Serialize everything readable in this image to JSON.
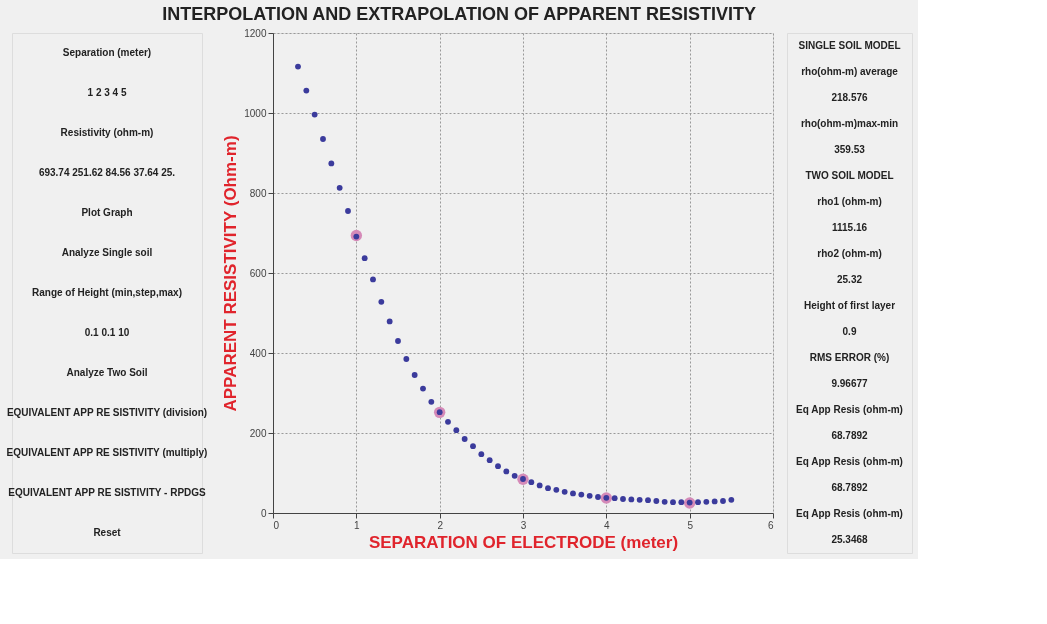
{
  "chart_data": [
    {
      "type": "other",
      "annotations": [
        "Separation (meter)",
        "1 2 3 4 5",
        "Resistivity (ohm-m)",
        "693.74 251.62 84.56 37.64 25.",
        "Plot Graph",
        "Analyze Single soil",
        "Range of Height (min,step,max)",
        "0.1 0.1 10",
        "Analyze Two Soil",
        "EQUIVALENT APP RE SISTIVITY (division)",
        "EQUIVALENT APP RE SISTIVITY (multiply)",
        "EQUIVALENT APP RE SISTIVITY - RPDGS",
        "Reset"
      ]
    },
    {
      "type": "scatter",
      "title": "INTERPOLATION AND EXTRAPOLATION OF APPARENT RESISTIVITY",
      "xlabel": "SEPARATION OF ELECTRODE (meter)",
      "ylabel": "APPARENT RESISTIVITY (Ohm-m)",
      "xlim": [
        0,
        6
      ],
      "xticks": [
        0,
        1,
        2,
        3,
        4,
        5,
        6
      ],
      "ylim": [
        0,
        1200
      ],
      "yticks": [
        0,
        200,
        400,
        600,
        800,
        1000,
        1200
      ],
      "grid": true,
      "marker": "circle",
      "series": [
        {
          "color": "#d58ab8",
          "x": [
            1,
            2,
            3,
            4,
            5
          ],
          "values": [
            693.74,
            251.62,
            84.56,
            37.64,
            25
          ]
        },
        {
          "color": "#3b3b9c",
          "x": [
            0.3,
            0.4,
            0.5,
            0.6,
            0.7,
            0.8,
            0.9,
            1.0,
            1.1,
            1.2,
            1.3,
            1.4,
            1.5,
            1.6,
            1.7,
            1.8,
            1.9,
            2.0,
            2.1,
            2.2,
            2.3,
            2.4,
            2.5,
            2.6,
            2.7,
            2.8,
            2.9,
            3.0,
            3.1,
            3.2,
            3.3,
            3.4,
            3.5,
            3.6,
            3.7,
            3.8,
            3.9,
            4.0,
            4.1,
            4.2,
            4.3,
            4.4,
            4.5,
            4.6,
            4.7,
            4.8,
            4.9,
            5.0,
            5.1,
            5.2,
            5.3,
            5.4,
            5.5
          ],
          "values": [
            1116,
            1056,
            996,
            935,
            874,
            813,
            755,
            691,
            637,
            584,
            528,
            479,
            430,
            385,
            345,
            311,
            278,
            252,
            228,
            207,
            185,
            167,
            147,
            132,
            117,
            104,
            93,
            85,
            77,
            69,
            62,
            58,
            53,
            49,
            46,
            43,
            40,
            38,
            37,
            35,
            34,
            33,
            32,
            30,
            28,
            27,
            27,
            26,
            27,
            28,
            29,
            30,
            33
          ]
        }
      ]
    },
    {
      "type": "other",
      "annotations": [
        "SINGLE SOIL MODEL",
        "rho(ohm-m) average",
        "218.576",
        "rho(ohm-m)max-min",
        "359.53",
        "TWO SOIL MODEL",
        "rho1 (ohm-m)",
        "1115.16",
        "rho2 (ohm-m)",
        "25.32",
        "Height of first layer",
        "0.9",
        "RMS ERROR (%)",
        "9.96677",
        "Eq App Resis (ohm-m)",
        "68.7892",
        "Eq App Resis (ohm-m)",
        "68.7892",
        "Eq App Resis (ohm-m)",
        "25.3468"
      ]
    }
  ]
}
